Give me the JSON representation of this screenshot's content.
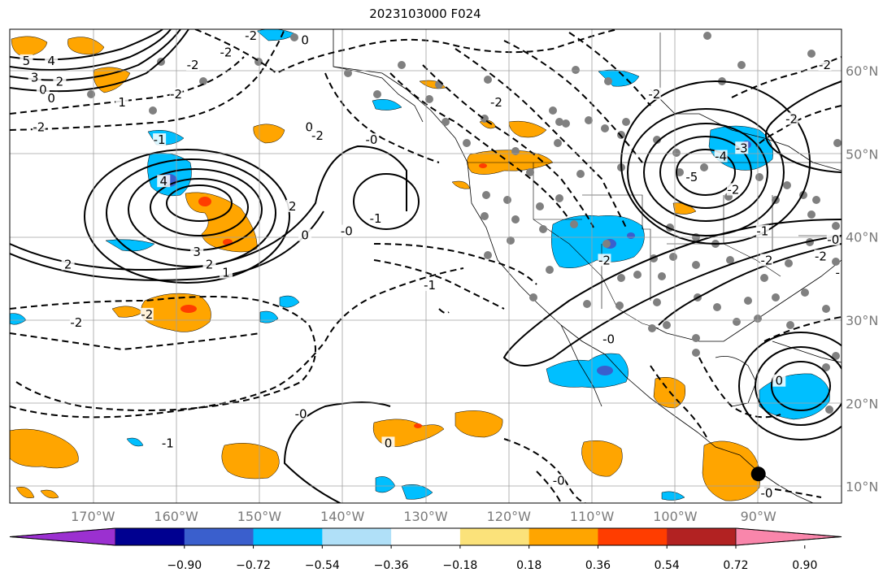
{
  "title": "2023103000 F024",
  "map": {
    "projection": "PlateCarree",
    "lon_range": [
      -180,
      -80
    ],
    "lat_range": [
      8,
      65
    ],
    "grid": true,
    "lon_ticks": [
      {
        "value": -170,
        "label": "170°W"
      },
      {
        "value": -160,
        "label": "160°W"
      },
      {
        "value": -150,
        "label": "150°W"
      },
      {
        "value": -140,
        "label": "140°W"
      },
      {
        "value": -130,
        "label": "130°W"
      },
      {
        "value": -120,
        "label": "120°W"
      },
      {
        "value": -110,
        "label": "110°W"
      },
      {
        "value": -100,
        "label": "100°W"
      },
      {
        "value": -90,
        "label": "90°W"
      }
    ],
    "lat_ticks": [
      {
        "value": 60,
        "label": "60°N"
      },
      {
        "value": 50,
        "label": "50°N"
      },
      {
        "value": 40,
        "label": "40°N"
      },
      {
        "value": 30,
        "label": "30°N"
      },
      {
        "value": 20,
        "label": "20°N"
      },
      {
        "value": 10,
        "label": "10°N"
      }
    ],
    "grid_color": "#a0a0a0",
    "tick_label_color": "#7a7a7a",
    "contour_labels": [
      {
        "text": "5",
        "lon": -178.0,
        "lat": 61.0
      },
      {
        "text": "4",
        "lon": -175.0,
        "lat": 61.0
      },
      {
        "text": "3",
        "lon": -177.0,
        "lat": 59.0
      },
      {
        "text": "2",
        "lon": -174.0,
        "lat": 58.5
      },
      {
        "text": "0",
        "lon": -176.0,
        "lat": 57.5
      },
      {
        "text": "0",
        "lon": -175.0,
        "lat": 56.5
      },
      {
        "text": "1",
        "lon": -166.5,
        "lat": 56.0
      },
      {
        "text": "-2",
        "lon": -176.5,
        "lat": 53.0
      },
      {
        "text": "-2",
        "lon": -160.0,
        "lat": 57.0
      },
      {
        "text": "-2",
        "lon": -158.0,
        "lat": 60.5
      },
      {
        "text": "-2",
        "lon": -154.0,
        "lat": 62.0
      },
      {
        "text": "-1",
        "lon": -162.0,
        "lat": 51.5
      },
      {
        "text": "0",
        "lon": -144.5,
        "lat": 63.5
      },
      {
        "text": "-2",
        "lon": -151.0,
        "lat": 64.0
      },
      {
        "text": "0",
        "lon": -144.0,
        "lat": 53.0
      },
      {
        "text": "-2",
        "lon": -143.0,
        "lat": 52.0
      },
      {
        "text": "4",
        "lon": -161.5,
        "lat": 46.5
      },
      {
        "text": "3",
        "lon": -157.5,
        "lat": 38.0
      },
      {
        "text": "2",
        "lon": -156.0,
        "lat": 36.5
      },
      {
        "text": "1",
        "lon": -154.0,
        "lat": 35.5
      },
      {
        "text": "2",
        "lon": -146.0,
        "lat": 43.5
      },
      {
        "text": "0",
        "lon": -144.5,
        "lat": 40.0
      },
      {
        "text": "2",
        "lon": -173.0,
        "lat": 36.5
      },
      {
        "text": "-1",
        "lon": -136.0,
        "lat": 42.0
      },
      {
        "text": "-0",
        "lon": -139.5,
        "lat": 40.5
      },
      {
        "text": "-0",
        "lon": -136.5,
        "lat": 51.5
      },
      {
        "text": "-2",
        "lon": -121.5,
        "lat": 56.0
      },
      {
        "text": "-1",
        "lon": -129.5,
        "lat": 34.0
      },
      {
        "text": "-2",
        "lon": -163.5,
        "lat": 30.5
      },
      {
        "text": "-2",
        "lon": -172.0,
        "lat": 29.5
      },
      {
        "text": "-0",
        "lon": -145.0,
        "lat": 18.5
      },
      {
        "text": "-1",
        "lon": -161.0,
        "lat": 15.0
      },
      {
        "text": "0",
        "lon": -134.5,
        "lat": 15.0
      },
      {
        "text": "-0",
        "lon": -114.0,
        "lat": 10.5
      },
      {
        "text": "-0",
        "lon": -108.0,
        "lat": 27.5
      },
      {
        "text": "-2",
        "lon": -108.5,
        "lat": 37.0
      },
      {
        "text": "-2",
        "lon": -102.5,
        "lat": 57.0
      },
      {
        "text": "-2",
        "lon": -86.0,
        "lat": 54.0
      },
      {
        "text": "-2",
        "lon": -82.0,
        "lat": 60.5
      },
      {
        "text": "-2",
        "lon": -93.0,
        "lat": 45.5
      },
      {
        "text": "-1",
        "lon": -89.5,
        "lat": 40.5
      },
      {
        "text": "-5",
        "lon": -98.0,
        "lat": 47.0
      },
      {
        "text": "-4",
        "lon": -94.5,
        "lat": 49.5
      },
      {
        "text": "-3",
        "lon": -92.0,
        "lat": 50.5
      },
      {
        "text": "-2",
        "lon": -89.0,
        "lat": 37.0
      },
      {
        "text": "-0",
        "lon": -81.0,
        "lat": 39.5
      },
      {
        "text": "-2",
        "lon": -82.5,
        "lat": 37.5
      },
      {
        "text": "-1",
        "lon": -80.0,
        "lat": 35.5
      },
      {
        "text": "0",
        "lon": -87.5,
        "lat": 22.5
      },
      {
        "text": "-0",
        "lon": -89.0,
        "lat": 9.0
      }
    ],
    "station_markers": {
      "color": "#808080",
      "count_description": "grey dots"
    },
    "feature_marker": {
      "lon": -90.0,
      "lat": 11.5,
      "color": "#000000"
    }
  },
  "colorbar": {
    "colors": [
      "#9b30d0",
      "#000090",
      "#3a5fcd",
      "#00bfff",
      "#b0e0f8",
      "#ffffff",
      "#fbe27a",
      "#ffa500",
      "#ff3d00",
      "#b22222",
      "#f986ab"
    ],
    "tick_labels": [
      "−0.90",
      "−0.72",
      "−0.54",
      "−0.36",
      "−0.18",
      "0.18",
      "0.36",
      "0.54",
      "0.72",
      "0.90"
    ],
    "extend": "both"
  }
}
